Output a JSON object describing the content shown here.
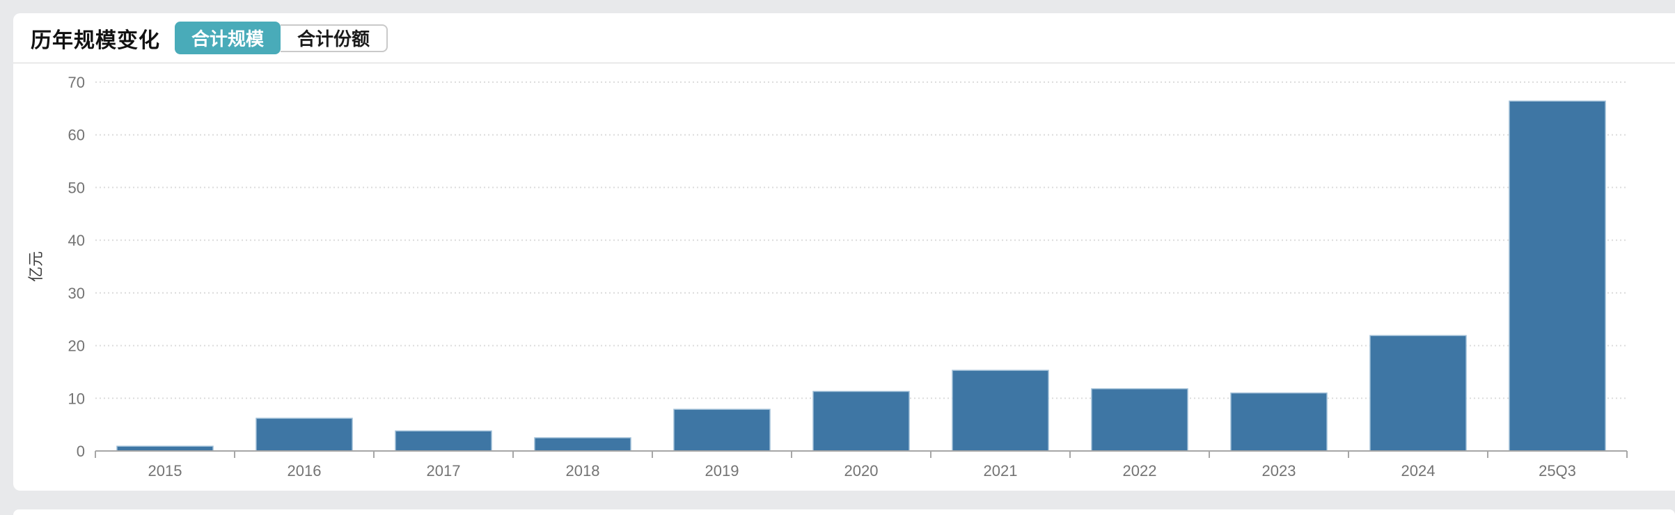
{
  "page": {
    "background": "#e8e9eb",
    "card_background": "#ffffff"
  },
  "header": {
    "title": "历年规模变化",
    "tabs": [
      {
        "label": "合计规模",
        "selected": true
      },
      {
        "label": "合计份额",
        "selected": false
      }
    ],
    "tab_selected_bg": "#49abb9",
    "tab_selected_text_color": "#ffffff",
    "tab_unselected_text_color": "#1a1a1a"
  },
  "chart_data": {
    "type": "bar",
    "title": "历年规模变化",
    "categories": [
      "2015",
      "2016",
      "2017",
      "2018",
      "2019",
      "2020",
      "2021",
      "2022",
      "2023",
      "2024",
      "25Q3"
    ],
    "values": [
      0.9,
      6.2,
      3.8,
      2.5,
      7.9,
      11.3,
      15.3,
      11.8,
      11.0,
      21.9,
      66.4
    ],
    "xlabel": "",
    "ylabel": "亿元",
    "ylim": [
      0,
      70
    ],
    "ytick_step": 10,
    "yticks": [
      0,
      10,
      20,
      30,
      40,
      50,
      60,
      70
    ],
    "grid": true,
    "gridline_style": "dotted",
    "legend": "none",
    "bar_color": "#3e76a4",
    "bar_border_color": "#9dbdd6",
    "axis_color": "#a6a6a6",
    "grid_color": "#dcdcdc",
    "tick_label_color": "#737373",
    "axis_name_color": "#3c3c3c"
  }
}
